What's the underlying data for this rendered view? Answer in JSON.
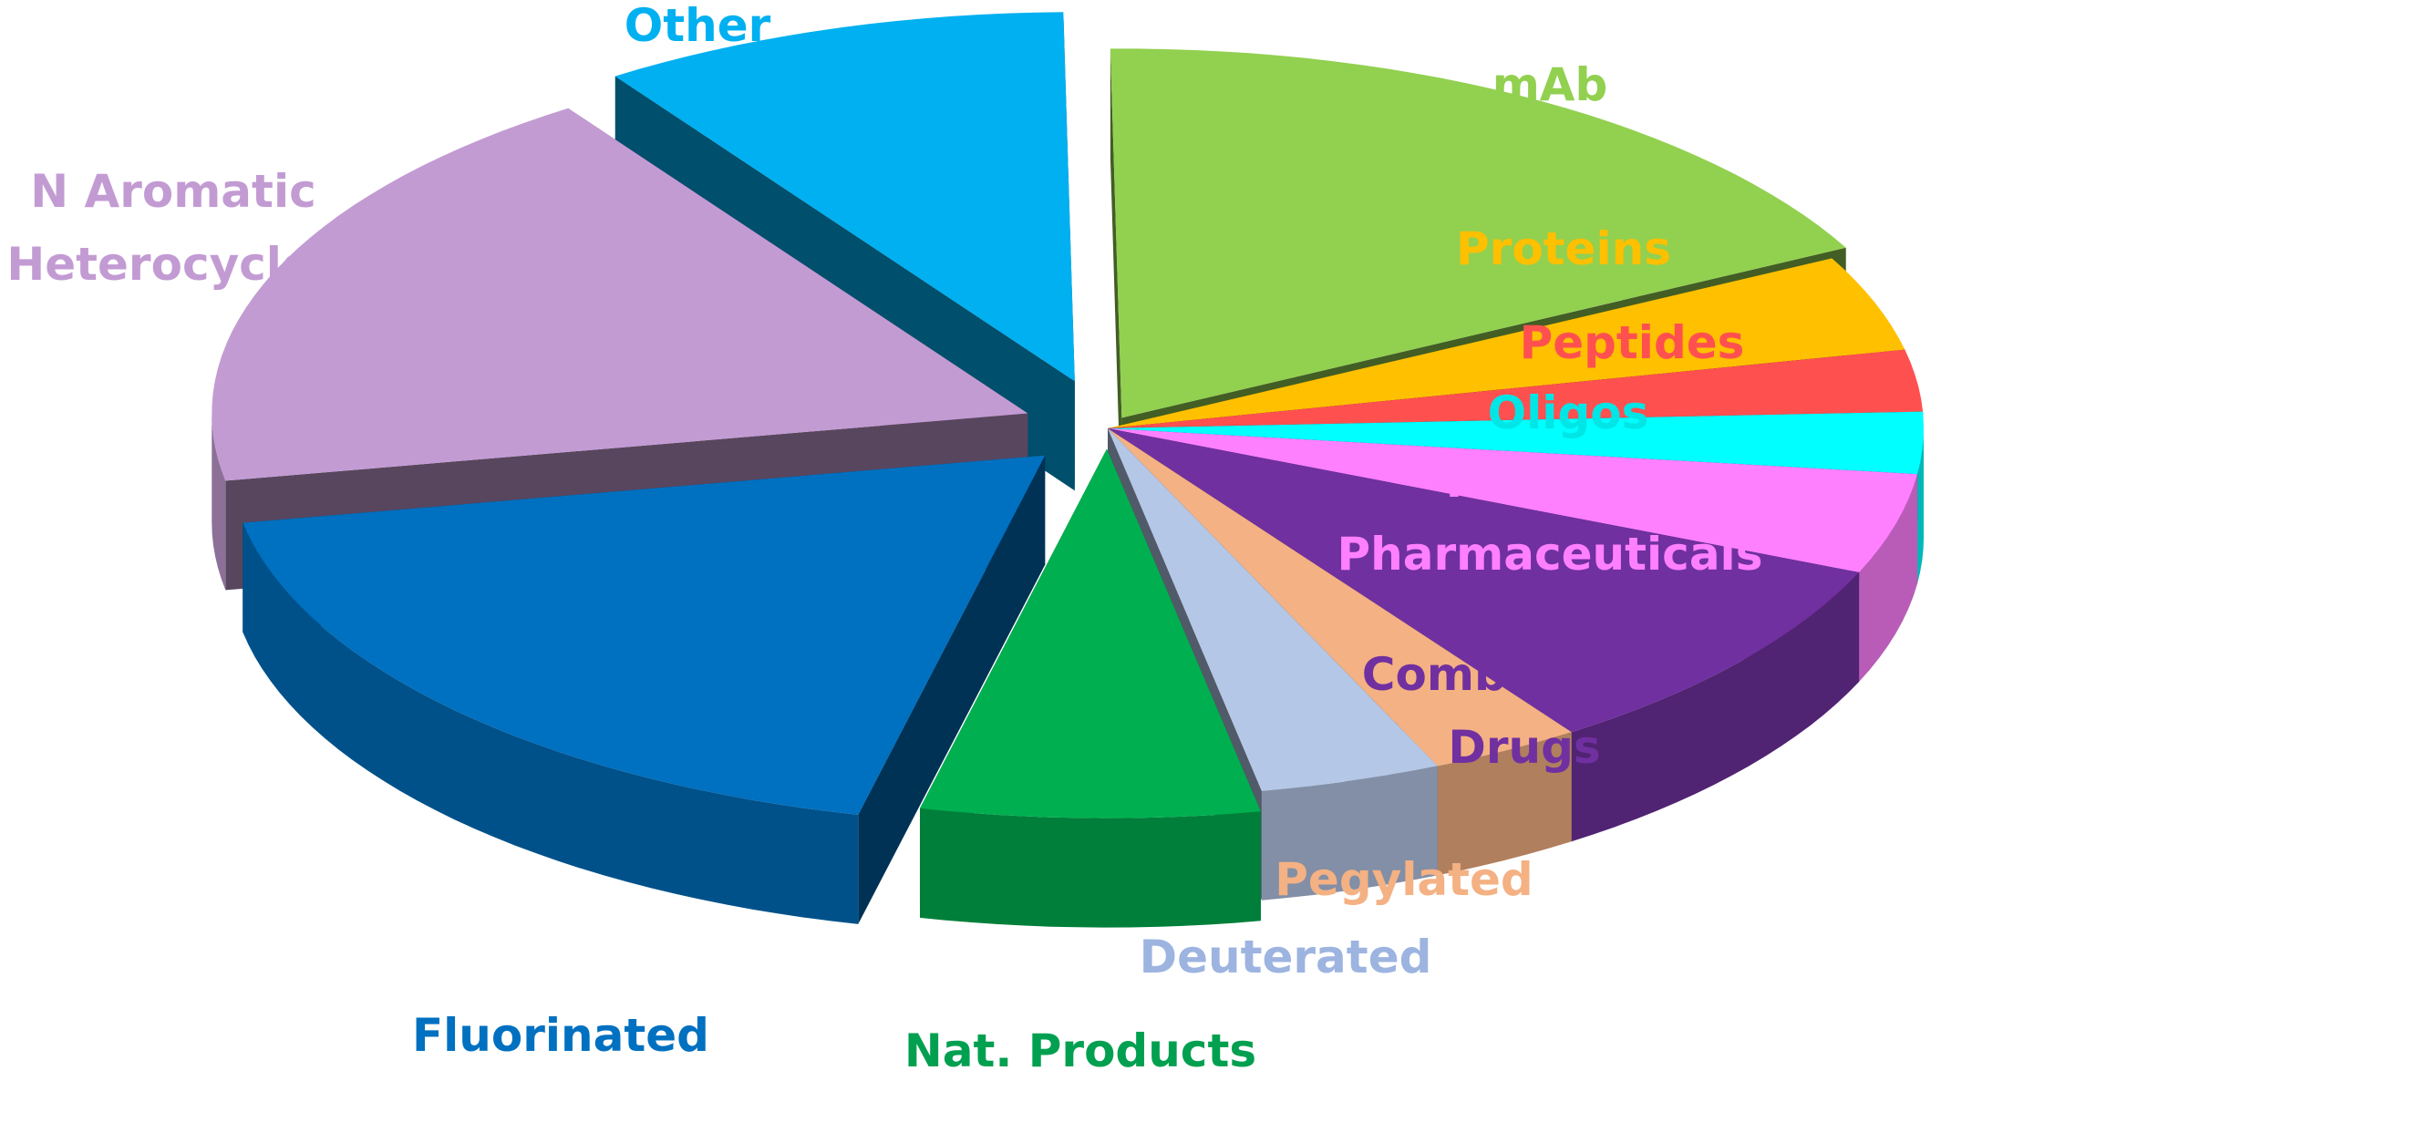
{
  "chart_data": {
    "type": "pie",
    "title": "",
    "slices": [
      {
        "label": "mAb",
        "value": 17.6,
        "color": "#92D050"
      },
      {
        "label": "Proteins",
        "value": 4.2,
        "color": "#FFC000"
      },
      {
        "label": "Peptides",
        "value": 2.7,
        "color": "#FF5050"
      },
      {
        "label": "Oligos",
        "value": 2.7,
        "color": "#00FFFF"
      },
      {
        "label": "Imaging Pharmaceuticals",
        "value": 4.4,
        "color": "#FF80FF"
      },
      {
        "label": "Combination Drugs",
        "value": 9.0,
        "color": "#7030A0"
      },
      {
        "label": "Pegylated",
        "value": 3.0,
        "color": "#F4B183"
      },
      {
        "label": "Deuterated",
        "value": 3.6,
        "color": "#B4C7E7"
      },
      {
        "label": "Nat. Products",
        "value": 6.7,
        "color": "#00B050"
      },
      {
        "label": "Fluorinated",
        "value": 18.4,
        "color": "#0070C0"
      },
      {
        "label": "N Aromatic Heterocycles",
        "value": 18.4,
        "color": "#C39BD3"
      },
      {
        "label": "Other",
        "value": 9.3,
        "color": "#00B0F0"
      }
    ],
    "labels": [
      {
        "lines": [
          "mAb"
        ],
        "color": "#92D050"
      },
      {
        "lines": [
          "Proteins"
        ],
        "color": "#FFC000"
      },
      {
        "lines": [
          "Peptides"
        ],
        "color": "#FF5050"
      },
      {
        "lines": [
          "Oligos"
        ],
        "color": "#00E5E5"
      },
      {
        "lines": [
          "Imaging",
          "Pharmaceuticals"
        ],
        "color": "#FF80FF"
      },
      {
        "lines": [
          "Combination",
          "Drugs"
        ],
        "color": "#7030A0"
      },
      {
        "lines": [
          "Pegylated"
        ],
        "color": "#F4B183"
      },
      {
        "lines": [
          "Deuterated"
        ],
        "color": "#9DB4E0"
      },
      {
        "lines": [
          "Nat. Products"
        ],
        "color": "#00A050"
      },
      {
        "lines": [
          "Fluorinated"
        ],
        "color": "#0070C0"
      },
      {
        "lines": [
          "N Aromatic",
          "Heterocycles"
        ],
        "color": "#C39BD3"
      },
      {
        "lines": [
          "Other"
        ],
        "color": "#00B0F0"
      }
    ],
    "legend": "none",
    "style": "3d-exploded"
  }
}
